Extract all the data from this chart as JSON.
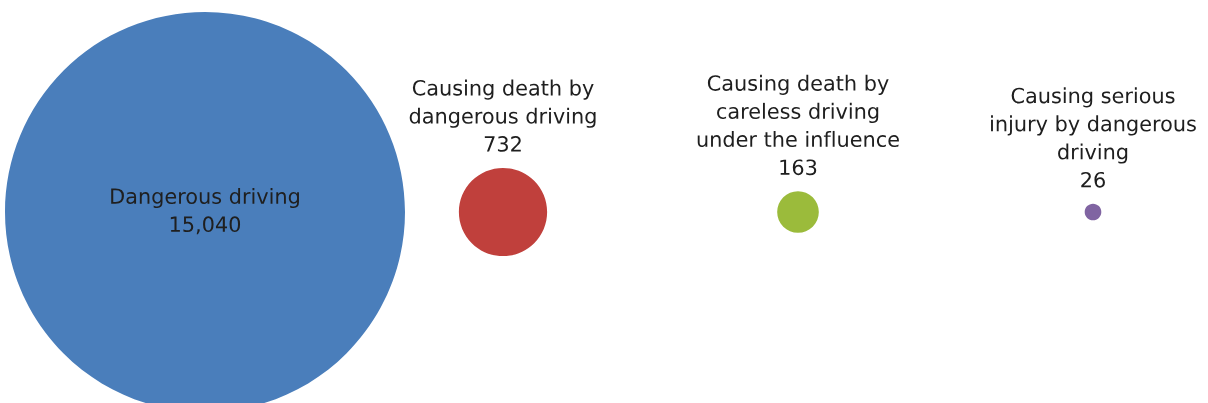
{
  "chart_data": {
    "type": "other",
    "categories": [
      "Dangerous driving",
      "Causing death by\ndangerous driving",
      "Causing death by\ncareless driving\nunder the influence",
      "Causing serious\ninjury by dangerous\ndriving"
    ],
    "values": [
      15040,
      732,
      163,
      26
    ],
    "colors": [
      "#4a7ebb",
      "#c0403c",
      "#9bbb3b",
      "#8064a2"
    ],
    "value_labels": [
      "15,040",
      "732",
      "163",
      "26"
    ]
  }
}
